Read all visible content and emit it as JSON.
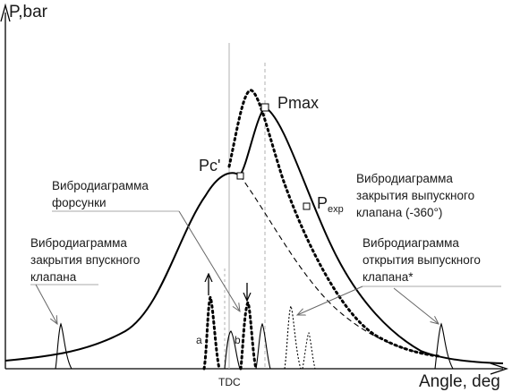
{
  "axes": {
    "y_label": "P,bar",
    "x_label": "Angle, deg",
    "tdc_label": "TDC"
  },
  "points": {
    "pc": "Pc'",
    "pmax": "Pmax",
    "pexp_main": "P",
    "pexp_sub": "exp"
  },
  "markers": {
    "a": "a",
    "b": "b"
  },
  "annotations": {
    "injector": [
      "Вибродиаграмма",
      "форсунки"
    ],
    "intake_close": [
      "Вибродиаграмма",
      "закрытия впускного",
      "клапана"
    ],
    "exhaust_close": [
      "Вибродиаграмма",
      "закрытия выпускного",
      "клапана (-360°)"
    ],
    "exhaust_open": [
      "Вибродиаграмма",
      "открытия выпускного",
      "клапана*"
    ]
  },
  "colors": {
    "line": "#000000",
    "guide": "#b0b0b0",
    "text": "#1a1a1a"
  }
}
